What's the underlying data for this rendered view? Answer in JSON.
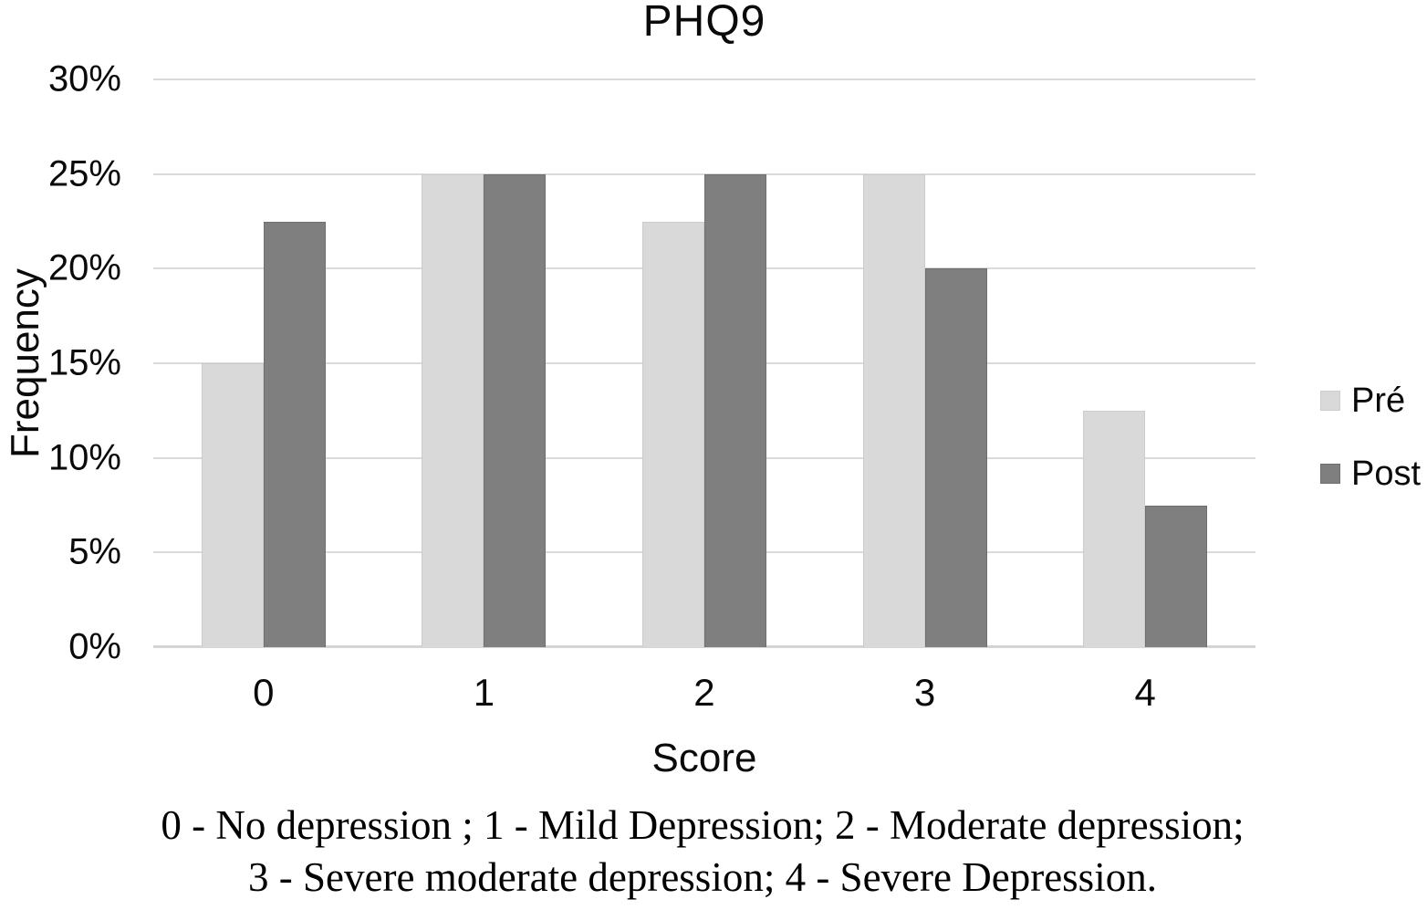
{
  "chart_data": {
    "type": "bar",
    "title": "PHQ9",
    "xlabel": "Score",
    "ylabel": "Frequency",
    "categories": [
      "0",
      "1",
      "2",
      "3",
      "4"
    ],
    "series": [
      {
        "name": "Pré",
        "color": "#d9d9d9",
        "border": "#cccccc",
        "values": [
          15,
          25,
          22.5,
          25,
          12.5
        ]
      },
      {
        "name": "Post",
        "color": "#7f7f7f",
        "border": "#6f6f6f",
        "values": [
          22.5,
          25,
          25,
          20,
          7.5
        ]
      }
    ],
    "ylim": [
      0,
      30
    ],
    "ytick_step": 5,
    "ytick_labels": [
      "0%",
      "5%",
      "10%",
      "15%",
      "20%",
      "25%",
      "30%"
    ],
    "grid": true,
    "gridline_color": "#dadada",
    "legend_position": "right"
  },
  "caption": {
    "line1": "0 - No depression ; 1 - Mild Depression; 2 - Moderate depression;",
    "line2": "3 - Severe moderate depression; 4 - Severe Depression."
  }
}
